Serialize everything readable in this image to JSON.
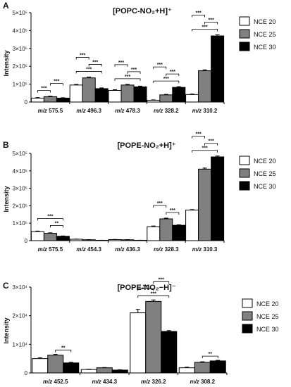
{
  "chart_data": [
    {
      "panel": "A",
      "type": "bar",
      "title": "[POPC-NO₂+H]⁺",
      "ylabel": "Intensity",
      "ylim": [
        0,
        500000
      ],
      "yticks": [
        {
          "value": 0,
          "label": "0"
        },
        {
          "value": 100000,
          "label": "1×10⁵"
        },
        {
          "value": 200000,
          "label": "2×10⁵"
        },
        {
          "value": 300000,
          "label": "3×10⁵"
        },
        {
          "value": 400000,
          "label": "4×10⁵"
        },
        {
          "value": 500000,
          "label": "5×10⁵"
        }
      ],
      "categories": [
        {
          "prefix": "m/z",
          "value": "575.5"
        },
        {
          "prefix": "m/z",
          "value": "496.3"
        },
        {
          "prefix": "m/z",
          "value": "478.3"
        },
        {
          "prefix": "m/z",
          "value": "328.2"
        },
        {
          "prefix": "m/z",
          "value": "310.2"
        }
      ],
      "series": [
        {
          "name": "NCE 20",
          "values": [
            22000,
            95000,
            65000,
            10000,
            42000
          ]
        },
        {
          "name": "NCE 25",
          "values": [
            30000,
            135000,
            95000,
            40000,
            175000
          ]
        },
        {
          "name": "NCE 30",
          "values": [
            22000,
            75000,
            85000,
            82000,
            370000
          ]
        }
      ],
      "errors": [
        [
          3000,
          4000,
          4000,
          2000,
          3000
        ],
        [
          3000,
          5000,
          4000,
          3000,
          5000
        ],
        [
          2000,
          4000,
          4000,
          4000,
          6000
        ]
      ],
      "significance": [
        {
          "cat": 0,
          "from": 0,
          "to": 1,
          "label": "***"
        },
        {
          "cat": 0,
          "from": 1,
          "to": 2,
          "label": "***"
        },
        {
          "cat": 1,
          "from": 0,
          "to": 2,
          "label": "***"
        },
        {
          "cat": 1,
          "from": 1,
          "to": 2,
          "label": "***"
        },
        {
          "cat": 1,
          "from": 0,
          "to": 1,
          "label": "***"
        },
        {
          "cat": 2,
          "from": 0,
          "to": 2,
          "label": "***"
        },
        {
          "cat": 2,
          "from": 1,
          "to": 2,
          "label": "***"
        },
        {
          "cat": 2,
          "from": 0,
          "to": 1,
          "label": "***"
        },
        {
          "cat": 3,
          "from": 0,
          "to": 2,
          "label": "***"
        },
        {
          "cat": 3,
          "from": 1,
          "to": 2,
          "label": "***"
        },
        {
          "cat": 3,
          "from": 0,
          "to": 1,
          "label": "***"
        },
        {
          "cat": 4,
          "from": 0,
          "to": 2,
          "label": "***"
        },
        {
          "cat": 4,
          "from": 1,
          "to": 2,
          "label": "***"
        },
        {
          "cat": 4,
          "from": 0,
          "to": 1,
          "label": "***"
        }
      ],
      "legend": [
        "NCE 20",
        "NCE 25",
        "NCE 30"
      ]
    },
    {
      "panel": "B",
      "type": "bar",
      "title": "[POPE-NO₂+H]⁺",
      "ylabel": "Intensity",
      "ylim": [
        0,
        500000
      ],
      "yticks": [
        {
          "value": 0,
          "label": "0"
        },
        {
          "value": 100000,
          "label": "1×10⁵"
        },
        {
          "value": 200000,
          "label": "2×10⁵"
        },
        {
          "value": 300000,
          "label": "3×10⁵"
        },
        {
          "value": 400000,
          "label": "4×10⁵"
        },
        {
          "value": 500000,
          "label": "5×10⁵"
        }
      ],
      "categories": [
        {
          "prefix": "m/z",
          "value": "575.5"
        },
        {
          "prefix": "m/z",
          "value": "454.3"
        },
        {
          "prefix": "m/z",
          "value": "436.3"
        },
        {
          "prefix": "m/z",
          "value": "328.3"
        },
        {
          "prefix": "m/z",
          "value": "310.3"
        }
      ],
      "series": [
        {
          "name": "NCE 20",
          "values": [
            52000,
            8000,
            6000,
            80000,
            175000
          ]
        },
        {
          "name": "NCE 25",
          "values": [
            42000,
            5000,
            5000,
            125000,
            410000
          ]
        },
        {
          "name": "NCE 30",
          "values": [
            25000,
            2000,
            2000,
            88000,
            480000
          ]
        }
      ],
      "errors": [
        [
          3000,
          1000,
          1000,
          4000,
          3000
        ],
        [
          3000,
          1000,
          1000,
          4000,
          6000
        ],
        [
          2000,
          500,
          500,
          3000,
          5000
        ]
      ],
      "significance": [
        {
          "cat": 0,
          "from": 1,
          "to": 2,
          "label": "**"
        },
        {
          "cat": 0,
          "from": 0,
          "to": 2,
          "label": "***"
        },
        {
          "cat": 3,
          "from": 1,
          "to": 2,
          "label": "***"
        },
        {
          "cat": 3,
          "from": 0,
          "to": 1,
          "label": "***"
        },
        {
          "cat": 4,
          "from": 0,
          "to": 2,
          "label": "***"
        },
        {
          "cat": 4,
          "from": 1,
          "to": 2,
          "label": "***"
        },
        {
          "cat": 4,
          "from": 0,
          "to": 1,
          "label": "***"
        }
      ],
      "legend": [
        "NCE 20",
        "NCE 25",
        "NCE 30"
      ]
    },
    {
      "panel": "C",
      "type": "bar",
      "title": "[POPE-NO₂−H]⁻",
      "ylabel": "Intensity",
      "ylim": [
        0,
        30000
      ],
      "yticks": [
        {
          "value": 0,
          "label": "0"
        },
        {
          "value": 10000,
          "label": "1×10⁴"
        },
        {
          "value": 20000,
          "label": "2×10⁴"
        },
        {
          "value": 30000,
          "label": "3×10⁴"
        }
      ],
      "categories": [
        {
          "prefix": "m/z",
          "value": "452.5"
        },
        {
          "prefix": "m/z",
          "value": "434.3"
        },
        {
          "prefix": "m/z",
          "value": "326.2"
        },
        {
          "prefix": "m/z",
          "value": "308.2"
        }
      ],
      "series": [
        {
          "name": "NCE 20",
          "values": [
            5000,
            1200,
            21000,
            1800
          ]
        },
        {
          "name": "NCE 25",
          "values": [
            6200,
            1800,
            25000,
            3700
          ]
        },
        {
          "name": "NCE 30",
          "values": [
            3500,
            1000,
            14500,
            4200
          ]
        }
      ],
      "errors": [
        [
          300,
          100,
          1200,
          200
        ],
        [
          300,
          100,
          500,
          200
        ],
        [
          200,
          100,
          300,
          200
        ]
      ],
      "significance": [
        {
          "cat": 0,
          "from": 1,
          "to": 2,
          "label": "**"
        },
        {
          "cat": 2,
          "from": 0,
          "to": 2,
          "label": "***"
        },
        {
          "cat": 2,
          "from": 0,
          "to": 1,
          "label": "***"
        },
        {
          "cat": 2,
          "from": 1,
          "to": 2,
          "label": "***"
        },
        {
          "cat": 3,
          "from": 1,
          "to": 2,
          "label": "**"
        }
      ],
      "legend": [
        "NCE 20",
        "NCE 25",
        "NCE 30"
      ]
    }
  ],
  "colors": {
    "NCE 20": "#ffffff",
    "NCE 25": "#808080",
    "NCE 30": "#000000",
    "axis": "#000000"
  }
}
